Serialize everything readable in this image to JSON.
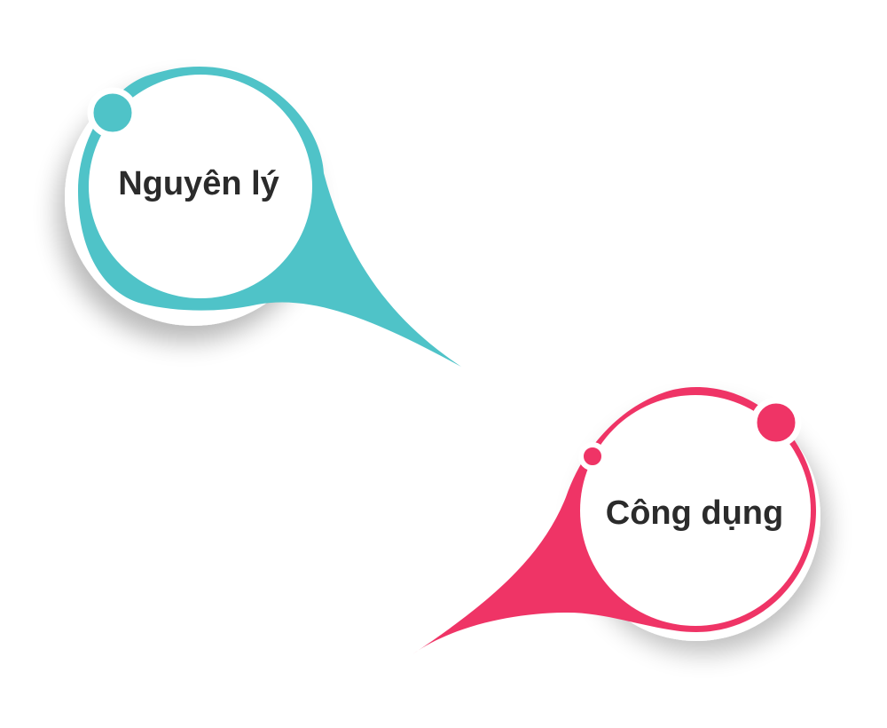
{
  "bubbles": [
    {
      "label": "Nguyên lý",
      "color": "#4fc3c8"
    },
    {
      "label": "Công dụng",
      "color": "#ef3466"
    }
  ]
}
